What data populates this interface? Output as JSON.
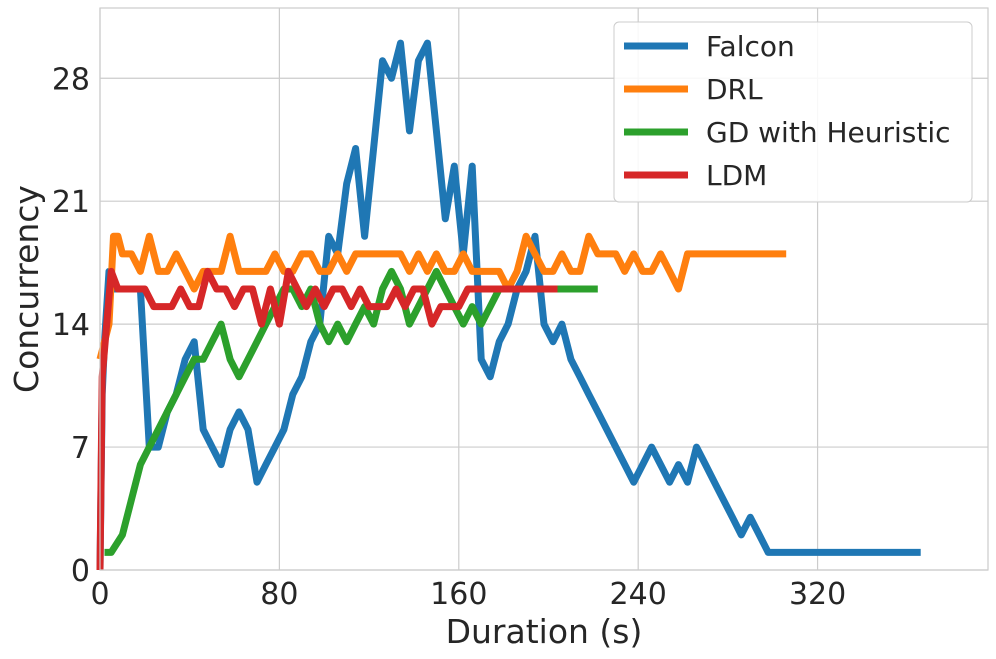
{
  "chart_data": {
    "type": "line",
    "title": "",
    "xlabel": "Duration (s)",
    "ylabel": "Concurrency",
    "xlim": [
      0,
      396
    ],
    "ylim": [
      0,
      32
    ],
    "xticks": [
      0,
      80,
      160,
      240,
      320
    ],
    "yticks": [
      0,
      7,
      14,
      21,
      28
    ],
    "grid": true,
    "legend_position": "top-right",
    "series": [
      {
        "name": "Falcon",
        "color": "#1f77b4",
        "x": [
          0,
          1,
          2,
          4,
          6,
          10,
          14,
          18,
          22,
          26,
          30,
          34,
          38,
          42,
          46,
          50,
          54,
          58,
          62,
          66,
          70,
          74,
          78,
          82,
          86,
          90,
          94,
          98,
          102,
          106,
          110,
          114,
          118,
          122,
          126,
          130,
          134,
          138,
          142,
          146,
          150,
          154,
          158,
          162,
          166,
          170,
          174,
          178,
          182,
          186,
          190,
          194,
          198,
          202,
          206,
          210,
          214,
          218,
          222,
          226,
          230,
          234,
          238,
          242,
          246,
          250,
          254,
          258,
          262,
          266,
          270,
          274,
          278,
          282,
          286,
          290,
          294,
          298,
          302,
          306,
          310,
          314,
          318,
          322,
          326,
          330,
          334,
          338,
          342,
          346,
          350,
          354,
          358,
          362,
          366
        ],
        "y": [
          0,
          10,
          13,
          17,
          16,
          16,
          16,
          16,
          7,
          7,
          9,
          10,
          12,
          13,
          8,
          7,
          6,
          8,
          9,
          8,
          5,
          6,
          7,
          8,
          10,
          11,
          13,
          14,
          19,
          18,
          22,
          24,
          19,
          24,
          29,
          28,
          30,
          25,
          29,
          30,
          25,
          20,
          23,
          18,
          23,
          12,
          11,
          13,
          14,
          16,
          17,
          19,
          14,
          13,
          14,
          12,
          11,
          10,
          9,
          8,
          7,
          6,
          5,
          6,
          7,
          6,
          5,
          6,
          5,
          7,
          6,
          5,
          4,
          3,
          2,
          3,
          2,
          1,
          1,
          1,
          1,
          1,
          1,
          1,
          1,
          1,
          1,
          1,
          1,
          1,
          1,
          1,
          1,
          1,
          1
        ]
      },
      {
        "name": "DRL",
        "color": "#ff7f0e",
        "x": [
          0,
          4,
          6,
          8,
          10,
          14,
          18,
          22,
          26,
          30,
          34,
          38,
          42,
          46,
          50,
          54,
          58,
          62,
          66,
          70,
          74,
          78,
          82,
          86,
          90,
          94,
          98,
          102,
          106,
          110,
          114,
          118,
          122,
          126,
          130,
          134,
          138,
          142,
          146,
          150,
          154,
          158,
          162,
          166,
          170,
          174,
          178,
          182,
          186,
          190,
          194,
          198,
          202,
          206,
          210,
          214,
          218,
          222,
          226,
          230,
          234,
          238,
          242,
          246,
          250,
          254,
          258,
          262,
          266,
          270,
          274,
          278,
          282,
          286,
          290,
          294,
          298,
          302,
          306
        ],
        "y": [
          12,
          14,
          19,
          19,
          18,
          18,
          17,
          19,
          17,
          17,
          18,
          17,
          16,
          17,
          17,
          17,
          19,
          17,
          17,
          17,
          17,
          18,
          17,
          17,
          18,
          18,
          17,
          17,
          18,
          17,
          18,
          18,
          18,
          18,
          18,
          18,
          17,
          18,
          17,
          18,
          17,
          17,
          18,
          17,
          17,
          17,
          17,
          16,
          17,
          19,
          18,
          17,
          17,
          18,
          17,
          17,
          19,
          18,
          18,
          18,
          17,
          18,
          17,
          17,
          18,
          17,
          16,
          18,
          18,
          18,
          18,
          18,
          18,
          18,
          18,
          18,
          18,
          18,
          18
        ]
      },
      {
        "name": "GD with Heuristic",
        "color": "#2ca02c",
        "x": [
          2,
          5,
          10,
          14,
          18,
          22,
          26,
          30,
          34,
          38,
          42,
          46,
          50,
          54,
          58,
          62,
          66,
          70,
          74,
          78,
          82,
          86,
          90,
          94,
          98,
          102,
          106,
          110,
          114,
          118,
          122,
          126,
          130,
          134,
          138,
          142,
          146,
          150,
          154,
          158,
          162,
          166,
          170,
          174,
          178,
          182,
          186,
          190,
          194,
          198,
          202,
          206,
          210,
          214,
          218,
          222
        ],
        "y": [
          1,
          1,
          2,
          4,
          6,
          7,
          8,
          9,
          10,
          11,
          12,
          12,
          13,
          14,
          12,
          11,
          12,
          13,
          14,
          15,
          16,
          16,
          15,
          16,
          14,
          13,
          14,
          13,
          14,
          15,
          14,
          16,
          17,
          16,
          14,
          15,
          16,
          17,
          16,
          15,
          14,
          15,
          14,
          15,
          16,
          16,
          16,
          16,
          16,
          16,
          16,
          16,
          16,
          16,
          16,
          16
        ]
      },
      {
        "name": "LDM",
        "color": "#d62728",
        "x": [
          0,
          1,
          3,
          5,
          8,
          12,
          16,
          20,
          24,
          28,
          32,
          36,
          40,
          44,
          48,
          52,
          56,
          60,
          64,
          68,
          72,
          76,
          80,
          84,
          88,
          92,
          96,
          100,
          104,
          108,
          112,
          116,
          120,
          124,
          128,
          132,
          136,
          140,
          144,
          148,
          152,
          156,
          160,
          164,
          168,
          172,
          176,
          180,
          184,
          188,
          192,
          196,
          200,
          204
        ],
        "y": [
          0,
          11,
          14,
          17,
          16,
          16,
          16,
          16,
          15,
          15,
          15,
          16,
          15,
          15,
          17,
          16,
          16,
          15,
          16,
          16,
          14,
          16,
          14,
          17,
          16,
          15,
          16,
          15,
          16,
          16,
          15,
          16,
          15,
          15,
          15,
          16,
          15,
          16,
          16,
          14,
          15,
          15,
          15,
          16,
          16,
          16,
          16,
          16,
          16,
          16,
          16,
          16,
          16,
          16
        ]
      }
    ]
  }
}
